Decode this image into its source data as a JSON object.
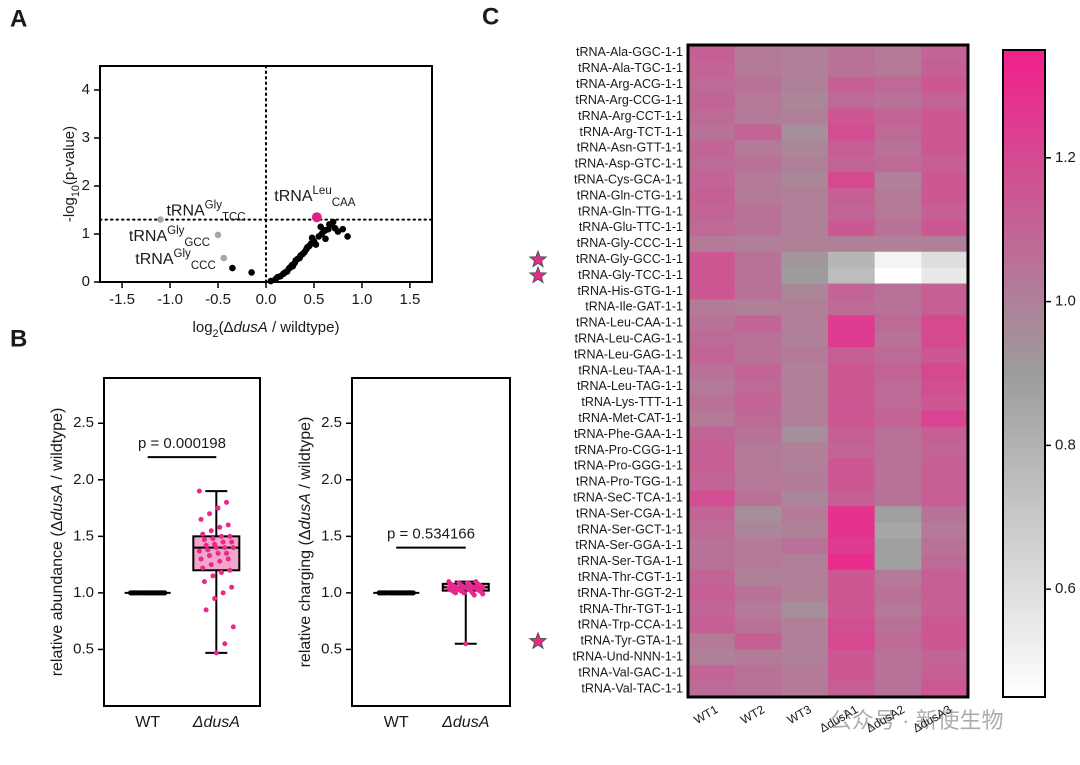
{
  "chart_data": [
    {
      "type": "scatter",
      "panel": "A",
      "xlim": [
        -1.73,
        1.73
      ],
      "ylim": [
        0,
        4.5
      ],
      "xticks": [
        -1.5,
        {
          "value": -1,
          "label": "-1.0"
        },
        -0.5,
        {
          "value": 0,
          "label": "0.0"
        },
        0.5,
        {
          "value": 1,
          "label": "1.0"
        },
        1.5
      ],
      "yticks": [
        0,
        1,
        2,
        3,
        4
      ],
      "xlabel": [
        {
          "text": "log"
        },
        {
          "text": "2",
          "style": "sub"
        },
        {
          "text": "(Δ"
        },
        {
          "text": "dusA",
          "style": "italic"
        },
        {
          "text": " / wildtype)"
        }
      ],
      "ylabel": [
        {
          "text": "-log"
        },
        {
          "text": "10",
          "style": "sub"
        },
        {
          "text": "(p-value)"
        }
      ],
      "reference_lines": {
        "x": 0,
        "y": 1.3
      },
      "series": [
        {
          "color": "#000000",
          "x": [
            0.05,
            0.1,
            0.12,
            0.15,
            0.18,
            0.2,
            0.22,
            0.24,
            0.25,
            0.27,
            0.28,
            0.3,
            0.31,
            0.33,
            0.35,
            0.36,
            0.38,
            0.4,
            0.42,
            0.43,
            0.45,
            0.47,
            0.5,
            0.52,
            0.55,
            0.58,
            0.6,
            0.62,
            0.65,
            0.68,
            0.7,
            0.72,
            0.75,
            0.8,
            0.85,
            0.62,
            0.66,
            0.57,
            0.48,
            -0.35,
            -0.15
          ],
          "y": [
            0.02,
            0.06,
            0.1,
            0.12,
            0.17,
            0.2,
            0.22,
            0.28,
            0.3,
            0.35,
            0.33,
            0.4,
            0.45,
            0.48,
            0.5,
            0.55,
            0.58,
            0.62,
            0.68,
            0.72,
            0.75,
            0.8,
            0.85,
            0.78,
            0.95,
            1.0,
            1.05,
            1.08,
            1.1,
            1.2,
            1.25,
            1.12,
            1.05,
            1.1,
            0.95,
            0.9,
            1.2,
            1.15,
            0.92,
            0.29,
            0.2
          ]
        },
        {
          "color": "#a6a6a6",
          "x": [
            -1.1,
            -0.5,
            -0.44
          ],
          "y": [
            1.3,
            0.98,
            0.5
          ],
          "labels": [
            {
              "base": "tRNA",
              "sup": "Gly",
              "sub": "TCC",
              "side": "right"
            },
            {
              "base": "tRNA",
              "sup": "Gly",
              "sub": "GCC",
              "side": "left"
            },
            {
              "base": "tRNA",
              "sup": "Gly",
              "sub": "CCC",
              "side": "left"
            }
          ]
        },
        {
          "color": "#e0218a",
          "x": [
            0.53
          ],
          "y": [
            1.35
          ],
          "labels": [
            {
              "base": "tRNA",
              "sup": "Leu",
              "sub": "CAA",
              "side": "above"
            }
          ]
        }
      ]
    },
    {
      "type": "box",
      "panel": "B",
      "categories": [
        {
          "text": "WT"
        },
        {
          "text": "ΔdusA",
          "style": "italic"
        }
      ],
      "ylabel": [
        {
          "text": "relative abundance (Δ"
        },
        {
          "text": "dusA",
          "style": "italic"
        },
        {
          "text": " / wildtype)"
        }
      ],
      "ylim": [
        0,
        2.9
      ],
      "yticks": [
        0.5,
        {
          "value": 1,
          "label": "1.0"
        },
        1.5,
        {
          "value": 2,
          "label": "2.0"
        },
        2.5
      ],
      "color": "#e8288a",
      "box_fill": "#f4a6c8",
      "annotation": "p = 0.000198",
      "boxes": [
        {
          "min": 1,
          "q1": 1,
          "median": 1,
          "q3": 1,
          "max": 1,
          "points": [
            1,
            1,
            1,
            1,
            1,
            1,
            1,
            1,
            1,
            1,
            1,
            1,
            1,
            1,
            1,
            1,
            1,
            1,
            1,
            1,
            1,
            1,
            1,
            1,
            1,
            1,
            1,
            1,
            1,
            1,
            1,
            1,
            1,
            1,
            1,
            1,
            1,
            1,
            1,
            1,
            1
          ]
        },
        {
          "min": 0.47,
          "q1": 1.2,
          "median": 1.4,
          "q3": 1.5,
          "max": 1.9,
          "points": [
            1.9,
            1.8,
            1.75,
            1.7,
            1.65,
            1.6,
            1.58,
            1.55,
            1.52,
            1.5,
            1.5,
            1.48,
            1.47,
            1.45,
            1.45,
            1.43,
            1.42,
            1.4,
            1.4,
            1.4,
            1.38,
            1.37,
            1.35,
            1.35,
            1.33,
            1.3,
            1.3,
            1.28,
            1.25,
            1.22,
            1.2,
            1.18,
            1.15,
            1.1,
            1.05,
            1.0,
            0.95,
            0.85,
            0.7,
            0.55,
            0.47
          ]
        }
      ]
    },
    {
      "type": "box",
      "categories": [
        {
          "text": "WT"
        },
        {
          "text": "ΔdusA",
          "style": "italic"
        }
      ],
      "ylabel": [
        {
          "text": "relative charging (Δ"
        },
        {
          "text": "dusA",
          "style": "italic"
        },
        {
          "text": " / wildtype)"
        }
      ],
      "ylim": [
        0,
        2.9
      ],
      "yticks": [
        0.5,
        {
          "value": 1,
          "label": "1.0"
        },
        1.5,
        {
          "value": 2,
          "label": "2.0"
        },
        2.5
      ],
      "color": "#e8288a",
      "box_fill": "#f4a6c8",
      "annotation": "p = 0.534166",
      "boxes": [
        {
          "min": 1,
          "q1": 1,
          "median": 1,
          "q3": 1,
          "max": 1,
          "points": [
            1,
            1,
            1,
            1,
            1,
            1,
            1,
            1,
            1,
            1,
            1,
            1,
            1,
            1,
            1,
            1,
            1,
            1,
            1,
            1,
            1,
            1,
            1,
            1,
            1,
            1,
            1,
            1,
            1,
            1,
            1,
            1,
            1,
            1,
            1,
            1,
            1,
            1,
            1,
            1,
            1
          ]
        },
        {
          "min": 0.55,
          "q1": 1.02,
          "median": 1.05,
          "q3": 1.08,
          "max": 1.1,
          "points": [
            1.1,
            1.1,
            1.09,
            1.09,
            1.08,
            1.08,
            1.08,
            1.07,
            1.07,
            1.07,
            1.06,
            1.06,
            1.06,
            1.06,
            1.05,
            1.05,
            1.05,
            1.05,
            1.05,
            1.05,
            1.04,
            1.04,
            1.04,
            1.04,
            1.03,
            1.03,
            1.03,
            1.03,
            1.02,
            1.02,
            1.02,
            1.02,
            1.01,
            1.01,
            1.01,
            1.0,
            1.0,
            1.0,
            0.99,
            0.98,
            0.55
          ]
        }
      ]
    },
    {
      "type": "heatmap",
      "panel": "C",
      "rows": [
        "tRNA-Ala-GGC-1-1",
        "tRNA-Ala-TGC-1-1",
        "tRNA-Arg-ACG-1-1",
        "tRNA-Arg-CCG-1-1",
        "tRNA-Arg-CCT-1-1",
        "tRNA-Arg-TCT-1-1",
        "tRNA-Asn-GTT-1-1",
        "tRNA-Asp-GTC-1-1",
        "tRNA-Cys-GCA-1-1",
        "tRNA-Gln-CTG-1-1",
        "tRNA-Gln-TTG-1-1",
        "tRNA-Glu-TTC-1-1",
        "tRNA-Gly-CCC-1-1",
        "tRNA-Gly-GCC-1-1",
        "tRNA-Gly-TCC-1-1",
        "tRNA-His-GTG-1-1",
        "tRNA-Ile-GAT-1-1",
        "tRNA-Leu-CAA-1-1",
        "tRNA-Leu-CAG-1-1",
        "tRNA-Leu-GAG-1-1",
        "tRNA-Leu-TAA-1-1",
        "tRNA-Leu-TAG-1-1",
        "tRNA-Lys-TTT-1-1",
        "tRNA-Met-CAT-1-1",
        "tRNA-Phe-GAA-1-1",
        "tRNA-Pro-CGG-1-1",
        "tRNA-Pro-GGG-1-1",
        "tRNA-Pro-TGG-1-1",
        "tRNA-SeC-TCA-1-1",
        "tRNA-Ser-CGA-1-1",
        "tRNA-Ser-GCT-1-1",
        "tRNA-Ser-GGA-1-1",
        "tRNA-Ser-TGA-1-1",
        "tRNA-Thr-CGT-1-1",
        "tRNA-Thr-GGT-2-1",
        "tRNA-Thr-TGT-1-1",
        "tRNA-Trp-CCA-1-1",
        "tRNA-Tyr-GTA-1-1",
        "tRNA-Und-NNN-1-1",
        "tRNA-Val-GAC-1-1",
        "tRNA-Val-TAC-1-1"
      ],
      "columns": [
        "WT1",
        "WT2",
        "WT3",
        "ΔdusA1",
        "ΔdusA2",
        "ΔdusA3"
      ],
      "values": [
        [
          1.12,
          1.02,
          1.0,
          1.05,
          1.02,
          1.1
        ],
        [
          1.1,
          1.02,
          1.0,
          1.05,
          1.03,
          1.12
        ],
        [
          1.08,
          1.05,
          1.0,
          1.12,
          1.08,
          1.15
        ],
        [
          1.1,
          1.03,
          0.98,
          1.08,
          1.05,
          1.1
        ],
        [
          1.08,
          1.02,
          1.0,
          1.15,
          1.1,
          1.15
        ],
        [
          1.05,
          1.1,
          0.95,
          1.18,
          1.08,
          1.15
        ],
        [
          1.1,
          1.02,
          0.98,
          1.12,
          1.05,
          1.15
        ],
        [
          1.08,
          1.05,
          1.0,
          1.1,
          1.08,
          1.12
        ],
        [
          1.1,
          1.02,
          0.98,
          1.2,
          1.0,
          1.15
        ],
        [
          1.12,
          1.02,
          1.0,
          1.12,
          1.02,
          1.15
        ],
        [
          1.1,
          1.05,
          1.0,
          1.1,
          1.03,
          1.12
        ],
        [
          1.08,
          1.05,
          1.0,
          1.15,
          1.05,
          1.15
        ],
        [
          1.02,
          1.0,
          1.0,
          1.0,
          1.0,
          1.0
        ],
        [
          1.15,
          1.05,
          0.92,
          0.78,
          0.5,
          0.6
        ],
        [
          1.15,
          1.05,
          0.9,
          0.75,
          0.45,
          0.55
        ],
        [
          1.15,
          1.05,
          0.98,
          1.1,
          1.05,
          1.12
        ],
        [
          1.02,
          1.0,
          1.0,
          1.08,
          1.05,
          1.12
        ],
        [
          1.05,
          1.1,
          1.0,
          1.25,
          1.08,
          1.2
        ],
        [
          1.08,
          1.05,
          1.0,
          1.25,
          1.05,
          1.2
        ],
        [
          1.1,
          1.05,
          1.02,
          1.12,
          1.08,
          1.15
        ],
        [
          1.05,
          1.1,
          1.0,
          1.15,
          1.1,
          1.2
        ],
        [
          1.02,
          1.08,
          1.0,
          1.15,
          1.08,
          1.18
        ],
        [
          1.05,
          1.1,
          1.0,
          1.15,
          1.08,
          1.15
        ],
        [
          1.02,
          1.08,
          1.0,
          1.15,
          1.1,
          1.22
        ],
        [
          1.1,
          1.05,
          0.95,
          1.12,
          1.05,
          1.12
        ],
        [
          1.12,
          1.02,
          1.0,
          1.1,
          1.05,
          1.1
        ],
        [
          1.12,
          1.02,
          1.0,
          1.15,
          1.05,
          1.12
        ],
        [
          1.1,
          1.03,
          1.02,
          1.15,
          1.05,
          1.12
        ],
        [
          1.18,
          1.05,
          0.98,
          1.12,
          1.05,
          1.12
        ],
        [
          1.1,
          0.95,
          1.02,
          1.28,
          0.88,
          1.05
        ],
        [
          1.08,
          0.98,
          1.0,
          1.28,
          0.85,
          1.02
        ],
        [
          1.05,
          1.02,
          1.05,
          1.25,
          0.88,
          1.05
        ],
        [
          1.05,
          1.02,
          1.0,
          1.3,
          0.88,
          1.08
        ],
        [
          1.1,
          1.0,
          1.0,
          1.15,
          1.02,
          1.12
        ],
        [
          1.12,
          1.05,
          1.0,
          1.15,
          1.05,
          1.12
        ],
        [
          1.1,
          1.02,
          0.95,
          1.15,
          1.03,
          1.12
        ],
        [
          1.12,
          1.05,
          1.0,
          1.18,
          1.05,
          1.15
        ],
        [
          1.02,
          1.12,
          1.0,
          1.2,
          1.08,
          1.15
        ],
        [
          1.0,
          1.02,
          1.0,
          1.15,
          1.05,
          1.1
        ],
        [
          1.1,
          1.05,
          1.02,
          1.15,
          1.05,
          1.12
        ],
        [
          1.08,
          1.05,
          1.02,
          1.12,
          1.05,
          1.15
        ]
      ],
      "colorlim": [
        0.45,
        1.35
      ],
      "colorbar_ticks": [
        0.6,
        0.8,
        {
          "value": 1,
          "label": "1.0"
        },
        1.2
      ],
      "colors": [
        "#ffffff",
        "#9c9c9c",
        "#f21f8c"
      ],
      "starred": [
        13,
        14,
        37
      ],
      "star_color": "#e8288a"
    }
  ],
  "watermark": "公众号 · 新使生物"
}
